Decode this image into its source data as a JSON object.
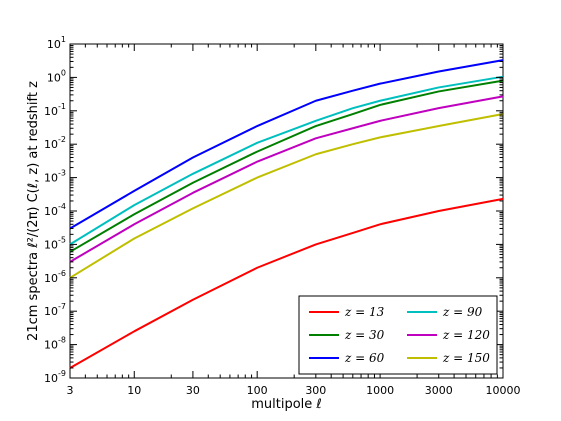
{
  "chart_data": {
    "type": "line",
    "title": "",
    "xlabel": "multipole ℓ",
    "ylabel": "21cm spectra ℓ²/(2π) C(ℓ, z) at redshift z",
    "xscale": "log",
    "yscale": "log",
    "xlim": [
      3,
      10000
    ],
    "ylim": [
      1e-09,
      10
    ],
    "x_ticks": [
      3,
      10,
      30,
      100,
      300,
      1000,
      3000,
      10000
    ],
    "x_tick_labels": [
      "3",
      "10",
      "30",
      "100",
      "300",
      "1000",
      "3000",
      "10000"
    ],
    "y_ticks": [
      1e-09,
      1e-08,
      1e-07,
      1e-06,
      1e-05,
      0.0001,
      0.001,
      0.01,
      0.1,
      1,
      10
    ],
    "y_tick_labels": [
      {
        "base": "10",
        "exp": "-9"
      },
      {
        "base": "10",
        "exp": "-8"
      },
      {
        "base": "10",
        "exp": "-7"
      },
      {
        "base": "10",
        "exp": "-6"
      },
      {
        "base": "10",
        "exp": "-5"
      },
      {
        "base": "10",
        "exp": "-4"
      },
      {
        "base": "10",
        "exp": "-3"
      },
      {
        "base": "10",
        "exp": "-2"
      },
      {
        "base": "10",
        "exp": "-1"
      },
      {
        "base": "10",
        "exp": "0"
      },
      {
        "base": "10",
        "exp": "1"
      }
    ],
    "grid": false,
    "legend_position": "bottom-right",
    "legend_columns": 2,
    "x": [
      3,
      10,
      30,
      100,
      300,
      600,
      1000,
      3000,
      10000
    ],
    "series": [
      {
        "name": "z = 13",
        "color": "#ff0000",
        "values": [
          2e-09,
          2.5e-08,
          2.2e-07,
          2e-06,
          1e-05,
          2.2e-05,
          4e-05,
          0.0001,
          0.00023
        ]
      },
      {
        "name": "z = 30",
        "color": "#008000",
        "values": [
          6e-06,
          8e-05,
          0.0007,
          0.006,
          0.035,
          0.08,
          0.15,
          0.38,
          0.8
        ]
      },
      {
        "name": "z = 60",
        "color": "#0000ff",
        "values": [
          3e-05,
          0.0004,
          0.004,
          0.035,
          0.2,
          0.4,
          0.65,
          1.5,
          3.3
        ]
      },
      {
        "name": "z = 90",
        "color": "#00bfbf",
        "values": [
          1e-05,
          0.00015,
          0.0013,
          0.011,
          0.05,
          0.12,
          0.2,
          0.5,
          1.05
        ]
      },
      {
        "name": "z = 120",
        "color": "#bf00bf",
        "values": [
          3e-06,
          4e-05,
          0.00035,
          0.003,
          0.015,
          0.03,
          0.05,
          0.12,
          0.27
        ]
      },
      {
        "name": "z = 150",
        "color": "#bfbf00",
        "values": [
          1e-06,
          1.5e-05,
          0.00012,
          0.001,
          0.005,
          0.01,
          0.016,
          0.035,
          0.08
        ]
      }
    ],
    "legend_order": [
      0,
      3,
      1,
      4,
      2,
      5
    ]
  }
}
